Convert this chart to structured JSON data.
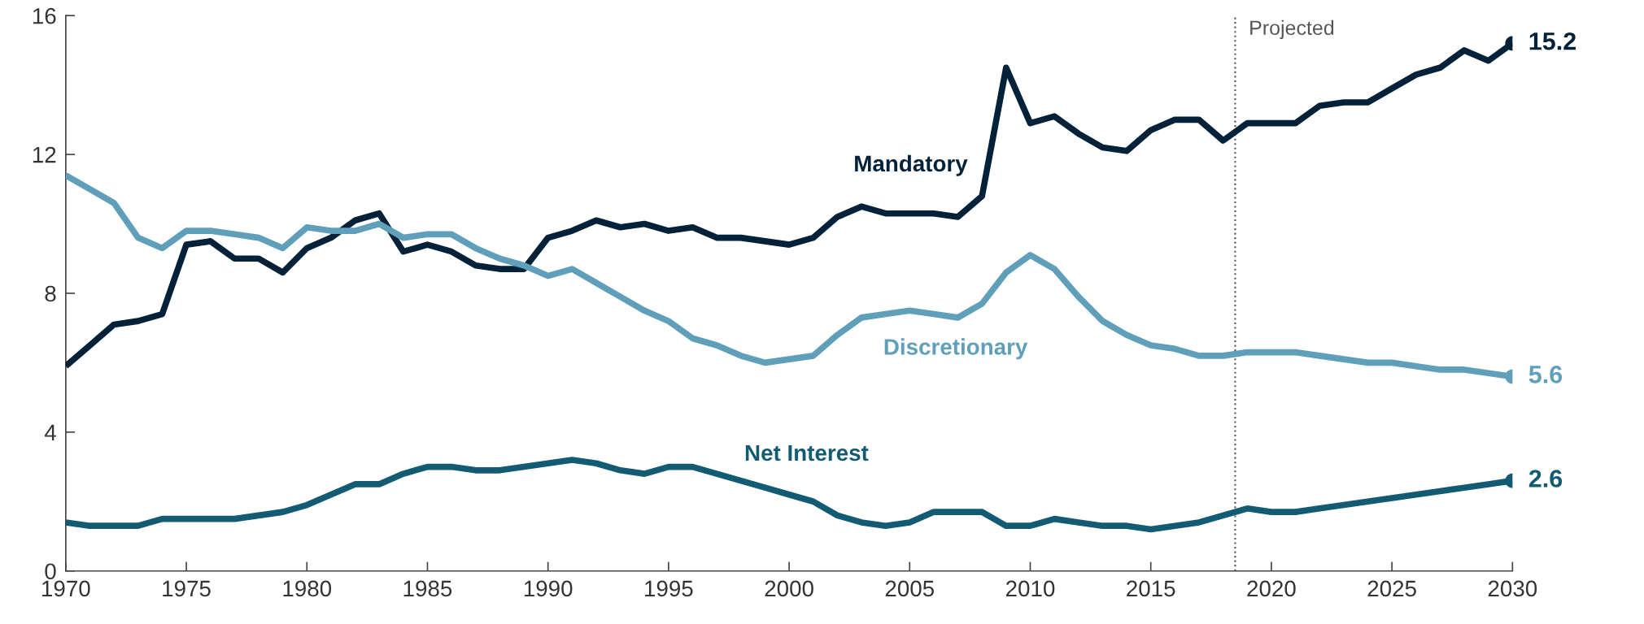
{
  "chart_data": {
    "type": "line",
    "x": [
      1970,
      1971,
      1972,
      1973,
      1974,
      1975,
      1976,
      1977,
      1978,
      1979,
      1980,
      1981,
      1982,
      1983,
      1984,
      1985,
      1986,
      1987,
      1988,
      1989,
      1990,
      1991,
      1992,
      1993,
      1994,
      1995,
      1996,
      1997,
      1998,
      1999,
      2000,
      2001,
      2002,
      2003,
      2004,
      2005,
      2006,
      2007,
      2008,
      2009,
      2010,
      2011,
      2012,
      2013,
      2014,
      2015,
      2016,
      2017,
      2018,
      2019,
      2020,
      2021,
      2022,
      2023,
      2024,
      2025,
      2026,
      2027,
      2028,
      2029,
      2030
    ],
    "series": [
      {
        "name": "Mandatory",
        "color": "#03223a",
        "values": [
          5.9,
          6.5,
          7.1,
          7.2,
          7.4,
          9.4,
          9.5,
          9.0,
          9.0,
          8.6,
          9.3,
          9.6,
          10.1,
          10.3,
          9.2,
          9.4,
          9.2,
          8.8,
          8.7,
          8.7,
          9.6,
          9.8,
          10.1,
          9.9,
          10.0,
          9.8,
          9.9,
          9.6,
          9.6,
          9.5,
          9.4,
          9.6,
          10.2,
          10.5,
          10.3,
          10.3,
          10.3,
          10.2,
          10.8,
          14.5,
          12.9,
          13.1,
          12.6,
          12.2,
          12.1,
          12.7,
          13.0,
          13.0,
          12.4,
          12.9,
          12.9,
          12.9,
          13.4,
          13.5,
          13.5,
          13.9,
          14.3,
          14.5,
          15.0,
          14.7,
          15.2
        ],
        "value_labels": [
          null,
          null,
          null,
          null,
          null,
          null,
          null,
          null,
          null,
          null,
          null,
          null,
          null,
          null,
          null,
          null,
          null,
          null,
          null,
          null,
          null,
          null,
          null,
          null,
          null,
          null,
          null,
          null,
          null,
          null,
          null,
          null,
          null,
          null,
          null,
          null,
          null,
          null,
          null,
          null,
          null,
          null,
          null,
          null,
          null,
          null,
          null,
          null,
          null,
          null,
          null,
          null,
          null,
          null,
          null,
          null,
          null,
          null,
          null,
          null,
          "15.2"
        ]
      },
      {
        "name": "Discretionary",
        "color": "#5f9fba",
        "values": [
          11.4,
          11.0,
          10.6,
          9.6,
          9.3,
          9.8,
          9.8,
          9.7,
          9.6,
          9.3,
          9.9,
          9.8,
          9.8,
          10.0,
          9.6,
          9.7,
          9.7,
          9.3,
          9.0,
          8.8,
          8.5,
          8.7,
          8.3,
          7.9,
          7.5,
          7.2,
          6.7,
          6.5,
          6.2,
          6.0,
          6.1,
          6.2,
          6.8,
          7.3,
          7.4,
          7.5,
          7.4,
          7.3,
          7.7,
          8.6,
          9.1,
          8.7,
          7.9,
          7.2,
          6.8,
          6.5,
          6.4,
          6.2,
          6.2,
          6.3,
          6.3,
          6.3,
          6.2,
          6.1,
          6.0,
          6.0,
          5.9,
          5.8,
          5.8,
          5.7,
          5.6
        ],
        "value_labels": [
          null,
          null,
          null,
          null,
          null,
          null,
          null,
          null,
          null,
          null,
          null,
          null,
          null,
          null,
          null,
          null,
          null,
          null,
          null,
          null,
          null,
          null,
          null,
          null,
          null,
          null,
          null,
          null,
          null,
          null,
          null,
          null,
          null,
          null,
          null,
          null,
          null,
          null,
          null,
          null,
          null,
          null,
          null,
          null,
          null,
          null,
          null,
          null,
          null,
          null,
          null,
          null,
          null,
          null,
          null,
          null,
          null,
          null,
          null,
          null,
          "5.6"
        ]
      },
      {
        "name": "Net Interest",
        "color": "#135b72",
        "values": [
          1.4,
          1.3,
          1.3,
          1.3,
          1.5,
          1.5,
          1.5,
          1.5,
          1.6,
          1.7,
          1.9,
          2.2,
          2.5,
          2.5,
          2.8,
          3.0,
          3.0,
          2.9,
          2.9,
          3.0,
          3.1,
          3.2,
          3.1,
          2.9,
          2.8,
          3.0,
          3.0,
          2.8,
          2.6,
          2.4,
          2.2,
          2.0,
          1.6,
          1.4,
          1.3,
          1.4,
          1.7,
          1.7,
          1.7,
          1.3,
          1.3,
          1.5,
          1.4,
          1.3,
          1.3,
          1.2,
          1.3,
          1.4,
          1.6,
          1.8,
          1.7,
          1.7,
          1.8,
          1.9,
          2.0,
          2.1,
          2.2,
          2.3,
          2.4,
          2.5,
          2.6
        ],
        "value_labels": [
          null,
          null,
          null,
          null,
          null,
          null,
          null,
          null,
          null,
          null,
          null,
          null,
          null,
          null,
          null,
          null,
          null,
          null,
          null,
          null,
          null,
          null,
          null,
          null,
          null,
          null,
          null,
          null,
          null,
          null,
          null,
          null,
          null,
          null,
          null,
          null,
          null,
          null,
          null,
          null,
          null,
          null,
          null,
          null,
          null,
          null,
          null,
          null,
          null,
          null,
          null,
          null,
          null,
          null,
          null,
          null,
          null,
          null,
          null,
          null,
          "2.6"
        ]
      }
    ],
    "xlim": [
      1970,
      2030
    ],
    "xticks": [
      1970,
      1975,
      1980,
      1985,
      1990,
      1995,
      2000,
      2005,
      2010,
      2015,
      2020,
      2025,
      2030
    ],
    "ylim": [
      0,
      16
    ],
    "yticks": [
      0,
      4,
      8,
      12,
      16
    ],
    "ref_lines": [
      {
        "axis": "x",
        "value": 2018.5,
        "label": "Projected",
        "color": "#555555",
        "line_style": "dotted"
      }
    ],
    "grid": false,
    "legend": false,
    "line_style": "solid"
  }
}
